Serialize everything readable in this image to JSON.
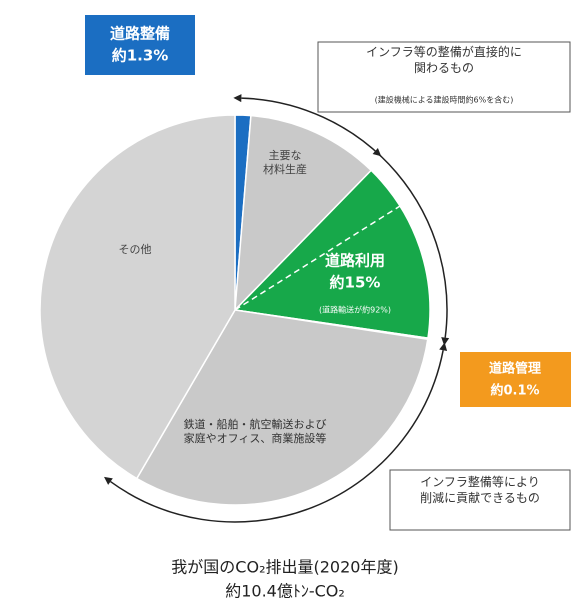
{
  "chart_data": {
    "type": "pie",
    "title": "我が国のCO₂排出量(2020年度)",
    "subtitle": "約10.4億ﾄﾝ-CO₂",
    "categories": [
      "道路整備",
      "主要な\n材料生産",
      "道路利用",
      "道路管理",
      "鉄道・船舶・航空輸送および\n家庭やオフィス、商業施設等",
      "その他"
    ],
    "values": [
      1.3,
      11,
      15,
      0.1,
      31,
      41.6
    ],
    "value_labels": [
      "約1.3%",
      null,
      "約15%",
      "約0.1%",
      null,
      null
    ],
    "colors": [
      "#1b6ec2",
      "#c9c9c9",
      "#17a84a",
      "#f2c230",
      "#c9c9c9",
      "#d4d4d4"
    ],
    "notes": [
      "(道路輸送が約92%)"
    ],
    "annotations": [
      "インフラ等の整備が直接的に\n関わるもの",
      "(建設機械による建設時間約6%を含む)",
      "インフラ整備等により\n削減に貢献できるもの"
    ]
  }
}
